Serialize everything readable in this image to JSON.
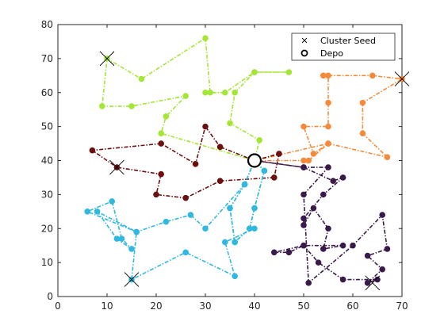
{
  "chart_data": {
    "type": "line",
    "title": "",
    "xlabel": "",
    "ylabel": "",
    "xlim": [
      0,
      70
    ],
    "ylim": [
      0,
      80
    ],
    "xticks": [
      0,
      10,
      20,
      30,
      40,
      50,
      60,
      70
    ],
    "yticks": [
      0,
      10,
      20,
      30,
      40,
      50,
      60,
      70,
      80
    ],
    "grid": false,
    "legend_position": "top-right",
    "legend": [
      {
        "label": "Cluster Seed",
        "marker": "x"
      },
      {
        "label": "Depo",
        "marker": "circle"
      }
    ],
    "depot": {
      "x": 40,
      "y": 40
    },
    "seeds": [
      {
        "x": 10,
        "y": 70
      },
      {
        "x": 70,
        "y": 64
      },
      {
        "x": 12,
        "y": 38
      },
      {
        "x": 15,
        "y": 5
      },
      {
        "x": 64,
        "y": 4
      }
    ],
    "series": [
      {
        "color": "#a3e635",
        "x": [
          40,
          21,
          22,
          26,
          15,
          9,
          10,
          17,
          30,
          31,
          30,
          34,
          40,
          47,
          40,
          36,
          35,
          41,
          40
        ],
        "y": [
          40,
          48,
          53,
          59,
          56,
          56,
          70,
          64,
          76,
          60,
          60,
          60,
          66,
          66,
          66,
          60,
          51,
          46,
          40
        ]
      },
      {
        "color": "#f58a3a",
        "x": [
          40,
          55,
          52,
          50,
          55,
          55,
          55,
          54,
          64,
          70,
          62,
          62,
          67,
          55,
          51,
          50,
          40
        ],
        "y": [
          40,
          45,
          42,
          50,
          50,
          57,
          65,
          65,
          65,
          64,
          57,
          48,
          41,
          45,
          40,
          40,
          40
        ]
      },
      {
        "color": "#6b0f0f",
        "x": [
          40,
          45,
          44,
          33,
          26,
          20,
          21,
          12,
          7,
          21,
          28,
          30,
          33,
          40
        ],
        "y": [
          40,
          42,
          35,
          34,
          29,
          30,
          36,
          38,
          43,
          45,
          39,
          50,
          44,
          40
        ]
      },
      {
        "color": "#30b8e0",
        "x": [
          40,
          38,
          35,
          36,
          39,
          40,
          42,
          40
        ],
        "y": [
          40,
          33,
          26,
          16,
          20,
          26,
          37,
          40
        ]
      },
      {
        "color": "#30b8e0",
        "x": [
          40,
          38,
          35,
          36,
          39,
          40,
          42,
          40
        ],
        "y": [
          40,
          33,
          26,
          16,
          20,
          26,
          37,
          40
        ]
      },
      {
        "color": "#30b8e0",
        "x": [
          38,
          30,
          27,
          22,
          16,
          6,
          11,
          13,
          15,
          12,
          8,
          16,
          15,
          26,
          36,
          34,
          40
        ],
        "y": [
          33,
          20,
          24,
          22,
          19,
          25,
          28,
          17,
          14,
          17,
          25,
          19,
          5,
          13,
          6,
          16,
          20
        ]
      },
      {
        "color": "#3a1a4a",
        "x": [
          40,
          50,
          56,
          58,
          54,
          50,
          50,
          52,
          55,
          54,
          58,
          50,
          47,
          44,
          50,
          53,
          58,
          65,
          63,
          66,
          63,
          67,
          66,
          60,
          51,
          50,
          55,
          50,
          40
        ],
        "y": [
          40,
          38,
          34,
          35,
          30,
          23,
          21,
          26,
          20,
          14,
          15,
          15,
          13,
          13,
          15,
          10,
          5,
          5,
          4,
          8,
          12,
          14,
          24,
          15,
          4,
          30,
          38,
          38,
          40
        ]
      }
    ]
  }
}
